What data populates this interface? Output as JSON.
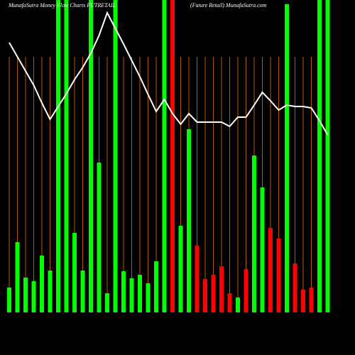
{
  "chart_data": {
    "type": "bar",
    "title": "MunafaSutra  Money Flow  Charts FUTRETAIL",
    "subtitle": "(Future   Retail) MunafaSutra.com",
    "categories": [
      null,
      null,
      null,
      null,
      null,
      null,
      null,
      null,
      null,
      null,
      null,
      null,
      null,
      null,
      null,
      null,
      null,
      null,
      null,
      null,
      null,
      null,
      null,
      null,
      null,
      null,
      null,
      null,
      null,
      null,
      null,
      null,
      null,
      null,
      null,
      null,
      null,
      null,
      null,
      null
    ],
    "values": [
      35,
      99,
      49,
      44,
      80,
      59,
      440,
      440,
      112,
      59,
      440,
      211,
      27,
      440,
      58,
      48,
      53,
      41,
      72,
      440,
      440,
      122,
      258,
      94,
      47,
      53,
      65,
      27,
      21,
      61,
      221,
      176,
      119,
      104,
      434,
      69,
      32,
      35,
      440,
      440
    ],
    "colors": [
      "#00ff00",
      "#00ff00",
      "#00ff00",
      "#00ff00",
      "#00ff00",
      "#00ff00",
      "#00ff00",
      "#00ff00",
      "#00ff00",
      "#00ff00",
      "#00ff00",
      "#00ff00",
      "#00ff00",
      "#00ff00",
      "#00ff00",
      "#00ff00",
      "#00ff00",
      "#00ff00",
      "#00ff00",
      "#00ff00",
      "#ff0000",
      "#00ff00",
      "#00ff00",
      "#ff0000",
      "#ff0000",
      "#ff0000",
      "#ff0000",
      "#ff0000",
      "#00ff00",
      "#ff0000",
      "#00ff00",
      "#00ff00",
      "#ff0000",
      "#ff0000",
      "#00ff00",
      "#ff0000",
      "#ff0000",
      "#ff0000",
      "#00ff00",
      "#00ff00"
    ],
    "line_values": [
      380,
      360,
      340,
      320,
      295,
      272,
      290,
      308,
      328,
      345,
      365,
      390,
      422,
      400,
      378,
      355,
      332,
      307,
      283,
      300,
      280,
      265,
      280,
      268,
      268,
      268,
      268,
      262,
      275,
      275,
      292,
      310,
      298,
      285,
      292,
      290,
      290,
      288,
      270,
      250
    ],
    "line_color": "#ffffff",
    "grid_color": "#b35900"
  }
}
